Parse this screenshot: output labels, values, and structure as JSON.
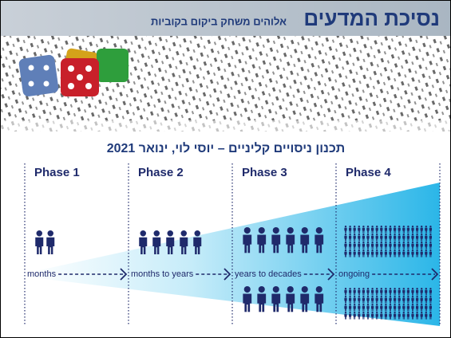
{
  "header": {
    "title": "נסיכת המדעים",
    "subtitle": "אלוהים משחק ביקום בקוביות"
  },
  "slide_title": "תכנון ניסויים קליניים – יוסי לוי, ינואר 2021",
  "phases": [
    {
      "label": "Phase 1",
      "duration": "months"
    },
    {
      "label": "Phase 2",
      "duration": "months to years"
    },
    {
      "label": "Phase 3",
      "duration": "years to decades"
    },
    {
      "label": "Phase 4",
      "duration": "ongoing"
    }
  ]
}
